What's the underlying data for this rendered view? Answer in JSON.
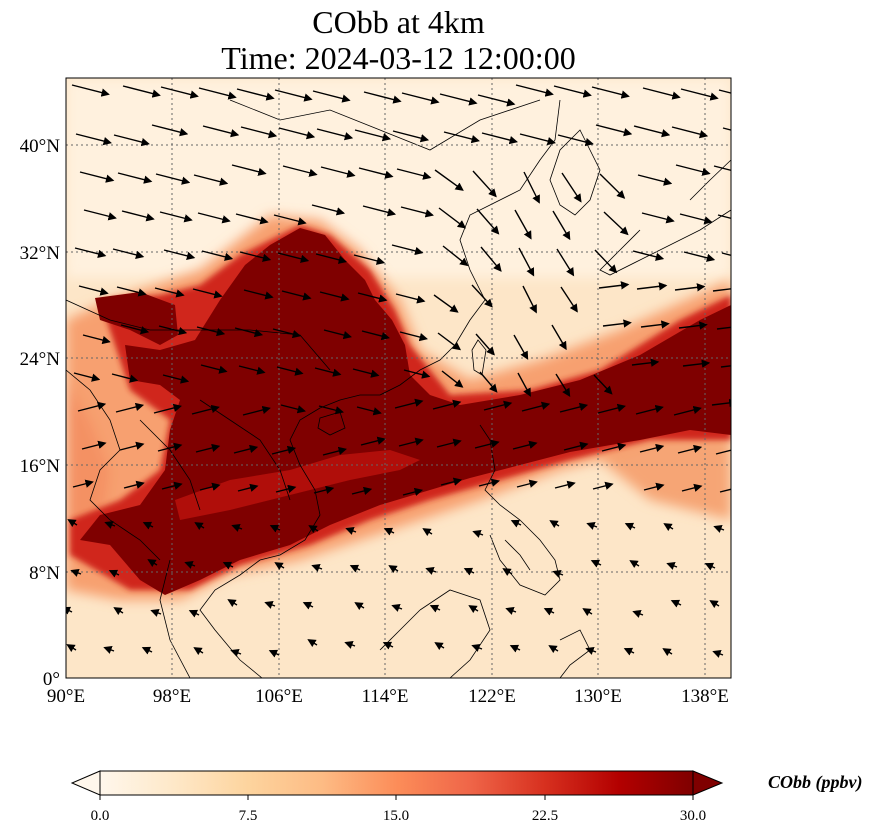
{
  "title": {
    "line1": "CObb at 4km",
    "line2": "Time: 2024-03-12 12:00:00"
  },
  "map": {
    "projection": "PlateCarree",
    "lon_range": [
      90,
      140
    ],
    "lat_range": [
      0,
      45
    ],
    "gridlines": "dotted",
    "coastlines": true,
    "borders": true,
    "x_ticks": [
      "90°E",
      "98°E",
      "106°E",
      "114°E",
      "122°E",
      "130°E",
      "138°E"
    ],
    "x_tick_values": [
      90,
      98,
      106,
      114,
      122,
      130,
      138
    ],
    "y_ticks": [
      "0°",
      "8°N",
      "16°N",
      "24°N",
      "32°N",
      "40°N"
    ],
    "y_tick_values": [
      0,
      8,
      16,
      24,
      32,
      40
    ],
    "field": "CObb",
    "units": "ppbv",
    "colormap": "OrRd",
    "plume": "Biomass-burning CO plume extending from Indochina and southern China eastward over the South China Sea, Philippines to the western Pacific; values ≥30 ppbv (dark red) in the core",
    "wind_vectors": true
  },
  "colorbar": {
    "label": "CObb (ppbv)",
    "ticks": [
      "0.0",
      "7.5",
      "15.0",
      "22.5",
      "30.0"
    ],
    "tick_values": [
      0,
      7.5,
      15,
      22.5,
      30
    ],
    "vmin": 0,
    "vmax": 30,
    "extend": "both",
    "colors": [
      "#fff7ec",
      "#fee8c8",
      "#fdd49e",
      "#fdbb84",
      "#fc8d59",
      "#ef6548",
      "#d7301f",
      "#b30000",
      "#7f0000"
    ]
  }
}
